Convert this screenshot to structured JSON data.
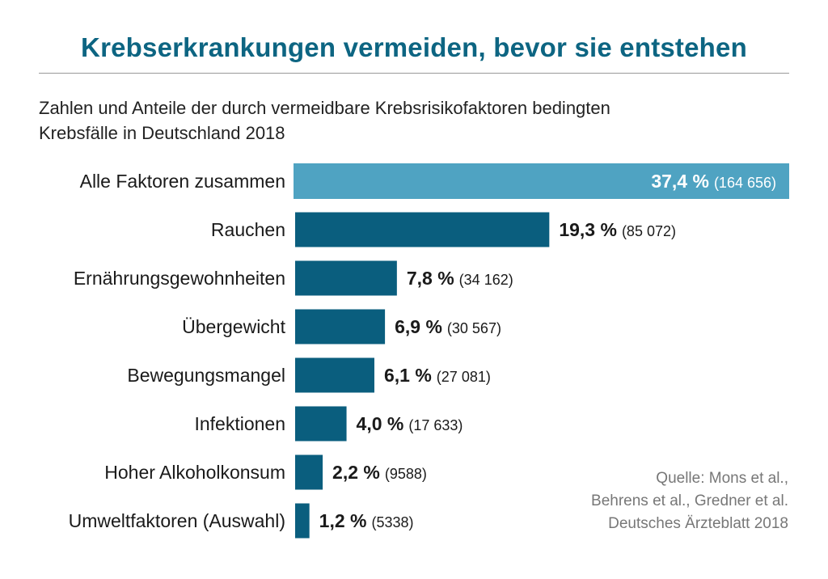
{
  "title": "Krebserkrankungen vermeiden, bevor sie entstehen",
  "subtitle_line1": "Zahlen und Anteile der durch vermeidbare Krebsrisikofaktoren bedingten",
  "subtitle_line2": "Krebsfälle in Deutschland 2018",
  "source": [
    "Quelle: Mons et al.,",
    "Behrens et al., Gredner et al.",
    "Deutsches Ärzteblatt 2018"
  ],
  "colors": {
    "highlight_bar": "#4fa3c2",
    "bar": "#0a5e7e",
    "title": "#0d6582"
  },
  "chart_data": {
    "type": "bar",
    "orientation": "horizontal",
    "title": "Krebserkrankungen vermeiden, bevor sie entstehen",
    "categories": [
      "Alle Faktoren zusammen",
      "Rauchen",
      "Ernährungsgewohnheiten",
      "Übergewicht",
      "Bewegungsmangel",
      "Infektionen",
      "Hoher Alkoholkonsum",
      "Umweltfaktoren (Auswahl)"
    ],
    "values": [
      37.4,
      19.3,
      7.8,
      6.9,
      6.1,
      4.0,
      2.2,
      1.2
    ],
    "value_labels": [
      "37,4 %",
      "19,3 %",
      "7,8 %",
      "6,9 %",
      "6,1 %",
      "4,0 %",
      "2,2 %",
      "1,2 %"
    ],
    "counts": [
      164656,
      85072,
      34162,
      30567,
      27081,
      17633,
      9588,
      5338
    ],
    "count_labels": [
      "(164 656)",
      "(85 072)",
      "(34 162)",
      "(30 567)",
      "(27 081)",
      "(17 633)",
      "(9588)",
      "(5338)"
    ],
    "unit": "%",
    "xlim": [
      0,
      37.4
    ],
    "grid": false,
    "legend": "none"
  }
}
